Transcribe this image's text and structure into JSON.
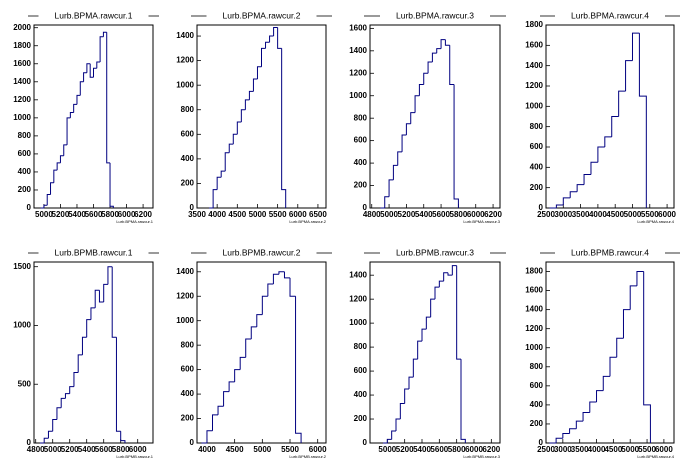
{
  "chart_data": [
    {
      "type": "histogram",
      "title": "Lurb.BPMA.rawcur.1",
      "xlabel": "Lurb.BPMA.rawcur.1",
      "color": "#000080",
      "xlim": [
        4880,
        6320
      ],
      "xticks": [
        5000,
        5200,
        5400,
        5600,
        5800,
        6000,
        6200
      ],
      "ylim": [
        0,
        2030
      ],
      "yticks": [
        0,
        200,
        400,
        600,
        800,
        1000,
        1200,
        1400,
        1600,
        1800,
        2000
      ],
      "bins": [
        4960,
        5000,
        5040,
        5080,
        5120,
        5160,
        5200,
        5240,
        5280,
        5320,
        5360,
        5400,
        5440,
        5480,
        5520,
        5560,
        5600,
        5640,
        5680,
        5720,
        5760,
        5800,
        5840
      ],
      "counts": [
        0,
        30,
        150,
        280,
        420,
        500,
        580,
        700,
        1000,
        1060,
        1150,
        1250,
        1400,
        1500,
        1600,
        1450,
        1550,
        1620,
        1900,
        1950,
        500,
        20
      ]
    },
    {
      "type": "histogram",
      "title": "Lurb.BPMA.rawcur.2",
      "xlabel": "Lurb.BPMA.rawcur.2",
      "color": "#000080",
      "xlim": [
        3500,
        6700
      ],
      "xticks": [
        3500,
        4000,
        4500,
        5000,
        5500,
        6000,
        6500
      ],
      "ylim": [
        0,
        1490
      ],
      "yticks": [
        0,
        200,
        400,
        600,
        800,
        1000,
        1200,
        1400
      ],
      "bins": [
        3800,
        3900,
        4000,
        4100,
        4200,
        4300,
        4400,
        4500,
        4600,
        4700,
        4800,
        4900,
        5000,
        5100,
        5200,
        5300,
        5400,
        5500,
        5600,
        5700
      ],
      "counts": [
        0,
        150,
        250,
        300,
        450,
        520,
        600,
        700,
        800,
        880,
        950,
        1050,
        1150,
        1300,
        1350,
        1400,
        1470,
        1300,
        150
      ]
    },
    {
      "type": "histogram",
      "title": "Lurb.BPMA.rawcur.3",
      "xlabel": "Lurb.BPMA.rawcur.3",
      "color": "#000080",
      "xlim": [
        4780,
        6280
      ],
      "xticks": [
        4800,
        5000,
        5200,
        5400,
        5600,
        5800,
        6000,
        6200
      ],
      "ylim": [
        0,
        1630
      ],
      "yticks": [
        0,
        200,
        400,
        600,
        800,
        1000,
        1200,
        1400,
        1600
      ],
      "bins": [
        4900,
        4950,
        5000,
        5050,
        5100,
        5150,
        5200,
        5250,
        5300,
        5350,
        5400,
        5450,
        5500,
        5550,
        5600,
        5650,
        5700,
        5750,
        5800
      ],
      "counts": [
        0,
        100,
        250,
        380,
        500,
        650,
        750,
        850,
        1000,
        1100,
        1200,
        1300,
        1380,
        1420,
        1500,
        1450,
        1100,
        80
      ]
    },
    {
      "type": "histogram",
      "title": "Lurb.BPMA.rawcur.4",
      "xlabel": "Lurb.BPMA.rawcur.4",
      "color": "#000080",
      "xlim": [
        2500,
        6200
      ],
      "xticks": [
        2500,
        3000,
        3500,
        4000,
        4500,
        5000,
        5500,
        6000
      ],
      "ylim": [
        0,
        1800
      ],
      "yticks": [
        0,
        200,
        400,
        600,
        800,
        1000,
        1200,
        1400,
        1600,
        1800
      ],
      "bins": [
        2600,
        2800,
        3000,
        3200,
        3400,
        3600,
        3800,
        4000,
        4200,
        4400,
        4600,
        4800,
        5000,
        5200,
        5400
      ],
      "counts": [
        0,
        30,
        100,
        160,
        230,
        330,
        450,
        600,
        700,
        900,
        1150,
        1450,
        1720,
        1100
      ]
    },
    {
      "type": "histogram",
      "title": "Lurb.BPMB.rawcur.1",
      "xlabel": "Lurb.BPMB.rawcur.1",
      "color": "#000080",
      "xlim": [
        4780,
        6180
      ],
      "xticks": [
        4800,
        5000,
        5200,
        5400,
        5600,
        5800,
        6000
      ],
      "ylim": [
        0,
        1540
      ],
      "yticks": [
        0,
        500,
        1000,
        1500
      ],
      "bins": [
        4850,
        4900,
        4950,
        5000,
        5050,
        5100,
        5150,
        5200,
        5250,
        5300,
        5350,
        5400,
        5450,
        5500,
        5550,
        5600,
        5650,
        5700,
        5750,
        5800,
        5850
      ],
      "counts": [
        0,
        40,
        100,
        200,
        300,
        380,
        420,
        480,
        600,
        750,
        900,
        1050,
        1150,
        1300,
        1200,
        1350,
        1500,
        900,
        100,
        20
      ]
    },
    {
      "type": "histogram",
      "title": "Lurb.BPMB.rawcur.2",
      "xlabel": "Lurb.BPMB.rawcur.2",
      "color": "#000080",
      "xlim": [
        3820,
        6150
      ],
      "xticks": [
        4000,
        4500,
        5000,
        5500,
        6000
      ],
      "ylim": [
        0,
        1480
      ],
      "yticks": [
        0,
        200,
        400,
        600,
        800,
        1000,
        1200,
        1400
      ],
      "bins": [
        3900,
        4000,
        4100,
        4200,
        4300,
        4400,
        4500,
        4600,
        4700,
        4800,
        4900,
        5000,
        5100,
        5200,
        5300,
        5400,
        5500,
        5600,
        5700
      ],
      "counts": [
        0,
        100,
        230,
        300,
        420,
        500,
        600,
        700,
        850,
        950,
        1050,
        1200,
        1300,
        1380,
        1400,
        1350,
        1200,
        80
      ]
    },
    {
      "type": "histogram",
      "title": "Lurb.BPMB.rawcur.3",
      "xlabel": "Lurb.BPMB.rawcur.3",
      "color": "#000080",
      "xlim": [
        4800,
        6300
      ],
      "xticks": [
        5000,
        5200,
        5400,
        5600,
        5800,
        6000,
        6200
      ],
      "ylim": [
        0,
        1510
      ],
      "yticks": [
        0,
        200,
        400,
        600,
        800,
        1000,
        1200,
        1400
      ],
      "bins": [
        4950,
        5000,
        5050,
        5100,
        5150,
        5200,
        5250,
        5300,
        5350,
        5400,
        5450,
        5500,
        5550,
        5600,
        5650,
        5700,
        5750,
        5800,
        5850,
        5900
      ],
      "counts": [
        0,
        30,
        100,
        200,
        330,
        450,
        550,
        700,
        850,
        950,
        1050,
        1200,
        1300,
        1350,
        1420,
        1400,
        1480,
        700,
        30
      ]
    },
    {
      "type": "histogram",
      "title": "Lurb.BPMB.rawcur.4",
      "xlabel": "Lurb.BPMB.rawcur.4",
      "color": "#000080",
      "xlim": [
        2500,
        6300
      ],
      "xticks": [
        2500,
        3000,
        3500,
        4000,
        4500,
        5000,
        5500,
        6000
      ],
      "ylim": [
        0,
        1900
      ],
      "yticks": [
        0,
        200,
        400,
        600,
        800,
        1000,
        1200,
        1400,
        1600,
        1800
      ],
      "bins": [
        2600,
        2800,
        3000,
        3200,
        3400,
        3600,
        3800,
        4000,
        4200,
        4400,
        4600,
        4800,
        5000,
        5200,
        5400,
        5600
      ],
      "counts": [
        0,
        50,
        100,
        150,
        230,
        320,
        430,
        550,
        700,
        900,
        1100,
        1400,
        1650,
        1800,
        400
      ]
    }
  ]
}
